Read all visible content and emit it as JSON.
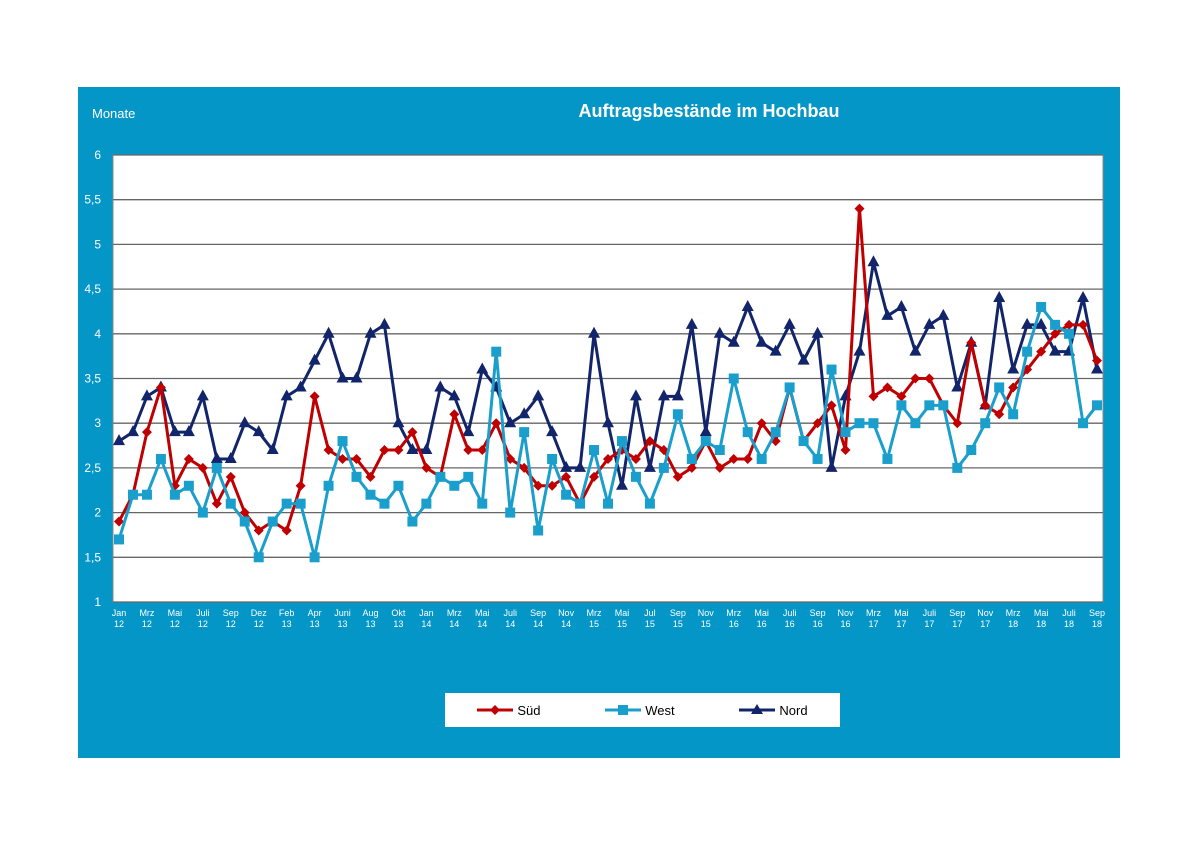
{
  "chart_data": {
    "type": "line",
    "title": "Auftragsbestände im Hochbau",
    "ylabel": "Monate",
    "xlabel": "",
    "ylim": [
      1,
      6
    ],
    "yticks": [
      "1",
      "1,5",
      "2",
      "2,5",
      "3",
      "3,5",
      "4",
      "4,5",
      "5",
      "5,5",
      "6"
    ],
    "grid": true,
    "legend_position": "bottom",
    "x_tick_labels": [
      [
        "Jan",
        "12"
      ],
      [
        "Mrz",
        "12"
      ],
      [
        "Mai",
        "12"
      ],
      [
        "Juli",
        "12"
      ],
      [
        "Sep",
        "12"
      ],
      [
        "Dez",
        "12"
      ],
      [
        "Feb",
        "13"
      ],
      [
        "Apr",
        "13"
      ],
      [
        "Juni",
        "13"
      ],
      [
        "Aug",
        "13"
      ],
      [
        "Okt",
        "13"
      ],
      [
        "Jan",
        "14"
      ],
      [
        "Mrz",
        "14"
      ],
      [
        "Mai",
        "14"
      ],
      [
        "Juli",
        "14"
      ],
      [
        "Sep",
        "14"
      ],
      [
        "Nov",
        "14"
      ],
      [
        "Mrz",
        "15"
      ],
      [
        "Mai",
        "15"
      ],
      [
        "Jul",
        "15"
      ],
      [
        "Sep",
        "15"
      ],
      [
        "Nov",
        "15"
      ],
      [
        "Mrz",
        "16"
      ],
      [
        "Mai",
        "16"
      ],
      [
        "Juli",
        "16"
      ],
      [
        "Sep",
        "16"
      ],
      [
        "Nov",
        "16"
      ],
      [
        "Mrz",
        "17"
      ],
      [
        "Mai",
        "17"
      ],
      [
        "Juli",
        "17"
      ],
      [
        "Sep",
        "17"
      ],
      [
        "Nov",
        "17"
      ],
      [
        "Mrz",
        "18"
      ],
      [
        "Mai",
        "18"
      ],
      [
        "Juli",
        "18"
      ],
      [
        "Sep",
        "18"
      ]
    ],
    "series": [
      {
        "name": "Süd",
        "color": "#c00000",
        "marker": "diamond",
        "values": [
          1.9,
          2.2,
          2.9,
          3.4,
          2.3,
          2.6,
          2.5,
          2.1,
          2.4,
          2.0,
          1.8,
          1.9,
          1.8,
          2.3,
          3.3,
          2.7,
          2.6,
          2.6,
          2.4,
          2.7,
          2.7,
          2.9,
          2.5,
          2.4,
          3.1,
          2.7,
          2.7,
          3.0,
          2.6,
          2.5,
          2.3,
          2.3,
          2.4,
          2.1,
          2.4,
          2.6,
          2.7,
          2.6,
          2.8,
          2.7,
          2.4,
          2.5,
          2.8,
          2.5,
          2.6,
          2.6,
          3.0,
          2.8,
          3.4,
          2.8,
          3.0,
          3.2,
          2.7,
          5.4,
          3.3,
          3.4,
          3.3,
          3.5,
          3.5,
          3.2,
          3.0,
          3.9,
          3.2,
          3.1,
          3.4,
          3.6,
          3.8,
          4.0,
          4.1,
          4.1,
          3.7
        ]
      },
      {
        "name": "West",
        "color": "#1a9fcc",
        "marker": "square",
        "values": [
          1.7,
          2.2,
          2.2,
          2.6,
          2.2,
          2.3,
          2.0,
          2.5,
          2.1,
          1.9,
          1.5,
          1.9,
          2.1,
          2.1,
          1.5,
          2.3,
          2.8,
          2.4,
          2.2,
          2.1,
          2.3,
          1.9,
          2.1,
          2.4,
          2.3,
          2.4,
          2.1,
          3.8,
          2.0,
          2.9,
          1.8,
          2.6,
          2.2,
          2.1,
          2.7,
          2.1,
          2.8,
          2.4,
          2.1,
          2.5,
          3.1,
          2.6,
          2.8,
          2.7,
          3.5,
          2.9,
          2.6,
          2.9,
          3.4,
          2.8,
          2.6,
          3.6,
          2.9,
          3.0,
          3.0,
          2.6,
          3.2,
          3.0,
          3.2,
          3.2,
          2.5,
          2.7,
          3.0,
          3.4,
          3.1,
          3.8,
          4.3,
          4.1,
          4.0,
          3.0,
          3.2
        ]
      },
      {
        "name": "Nord",
        "color": "#12246a",
        "marker": "triangle",
        "values": [
          2.8,
          2.9,
          3.3,
          3.4,
          2.9,
          2.9,
          3.3,
          2.6,
          2.6,
          3.0,
          2.9,
          2.7,
          3.3,
          3.4,
          3.7,
          4.0,
          3.5,
          3.5,
          4.0,
          4.1,
          3.0,
          2.7,
          2.7,
          3.4,
          3.3,
          2.9,
          3.6,
          3.4,
          3.0,
          3.1,
          3.3,
          2.9,
          2.5,
          2.5,
          4.0,
          3.0,
          2.3,
          3.3,
          2.5,
          3.3,
          3.3,
          4.1,
          2.9,
          4.0,
          3.9,
          4.3,
          3.9,
          3.8,
          4.1,
          3.7,
          4.0,
          2.5,
          3.3,
          3.8,
          4.8,
          4.2,
          4.3,
          3.8,
          4.1,
          4.2,
          3.4,
          3.9,
          3.2,
          4.4,
          3.6,
          4.1,
          4.1,
          3.8,
          3.8,
          4.4,
          3.6
        ]
      }
    ]
  }
}
